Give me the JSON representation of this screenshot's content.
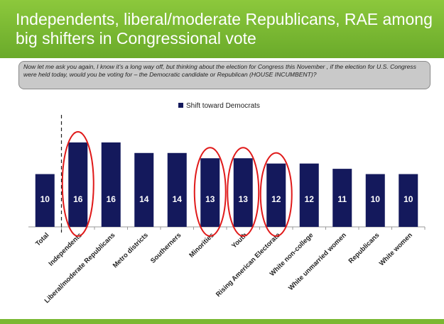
{
  "header": {
    "title": "Independents, liberal/moderate Republicans, RAE among big shifters in Congressional vote"
  },
  "question": {
    "text": "Now let me ask you again, I know it's a long way off, but thinking about the election for Congress this November , if the election for U.S. Congress were held today, would you be voting for – the Democratic candidate or Republican (HOUSE INCUMBENT)?"
  },
  "colors": {
    "header_green": "#7ab832",
    "bar_navy": "#14195c",
    "highlight_circle": "#e01a1a",
    "question_box": "#c9c9c9"
  },
  "chart_data": {
    "type": "bar",
    "categories": [
      "Total",
      "Independents",
      "Liberal/moderate Republicans",
      "Metro districts",
      "Southerners",
      "Minorities",
      "Youth",
      "Rising American Electorate",
      "White non-college",
      "White unmarried women",
      "Republicans",
      "White women"
    ],
    "series": [
      {
        "name": "Shift toward Democrats",
        "values": [
          10,
          16,
          16,
          14,
          14,
          13,
          13,
          12,
          12,
          11,
          10,
          10
        ]
      }
    ],
    "title": "",
    "xlabel": "",
    "ylabel": "",
    "ylim": [
      0,
      18
    ],
    "legend": "top-center",
    "grid": false,
    "highlighted_categories": [
      "Independents",
      "Minorities",
      "Youth",
      "Rising American Electorate"
    ],
    "divider_after": "Total"
  }
}
